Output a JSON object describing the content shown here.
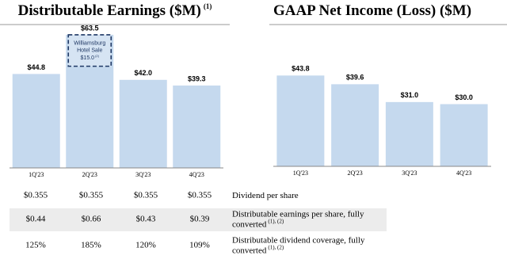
{
  "chart_data": [
    {
      "type": "bar",
      "title": "Distributable Earnings ($M)",
      "title_note": "(1)",
      "categories": [
        "1Q'23",
        "2Q'23",
        "3Q'23",
        "4Q'23"
      ],
      "values": [
        44.8,
        63.5,
        42.0,
        39.3
      ],
      "value_labels": [
        "$44.8",
        "$63.5",
        "$42.0",
        "$39.3"
      ],
      "color": "#c5d9ee",
      "ylim": [
        0,
        68
      ],
      "annotation": {
        "category": "2Q'23",
        "text": [
          "Williamsburg",
          "Hotel Sale"
        ],
        "value": 15.0,
        "value_label": "$15.0",
        "note": "(2)"
      }
    },
    {
      "type": "bar",
      "title": "GAAP Net Income (Loss) ($M)",
      "categories": [
        "1Q'23",
        "2Q'23",
        "3Q'23",
        "4Q'23"
      ],
      "values": [
        43.8,
        39.6,
        31.0,
        30.0
      ],
      "value_labels": [
        "$43.8",
        "$39.6",
        "$31.0",
        "$30.0"
      ],
      "color": "#c5d9ee",
      "ylim": [
        0,
        68
      ]
    }
  ],
  "table": {
    "rows": [
      {
        "cells": [
          "$0.355",
          "$0.355",
          "$0.355",
          "$0.355"
        ],
        "label": [
          "Dividend per share"
        ]
      },
      {
        "cells": [
          "$0.44",
          "$0.66",
          "$0.43",
          "$0.39"
        ],
        "label": [
          "Distributable earnings per share, fully",
          "converted"
        ],
        "note": "(1), (2)"
      },
      {
        "cells": [
          "125%",
          "185%",
          "120%",
          "109%"
        ],
        "label": [
          "Distributable dividend coverage, fully",
          "converted"
        ],
        "note": "(1), (2)"
      }
    ]
  }
}
